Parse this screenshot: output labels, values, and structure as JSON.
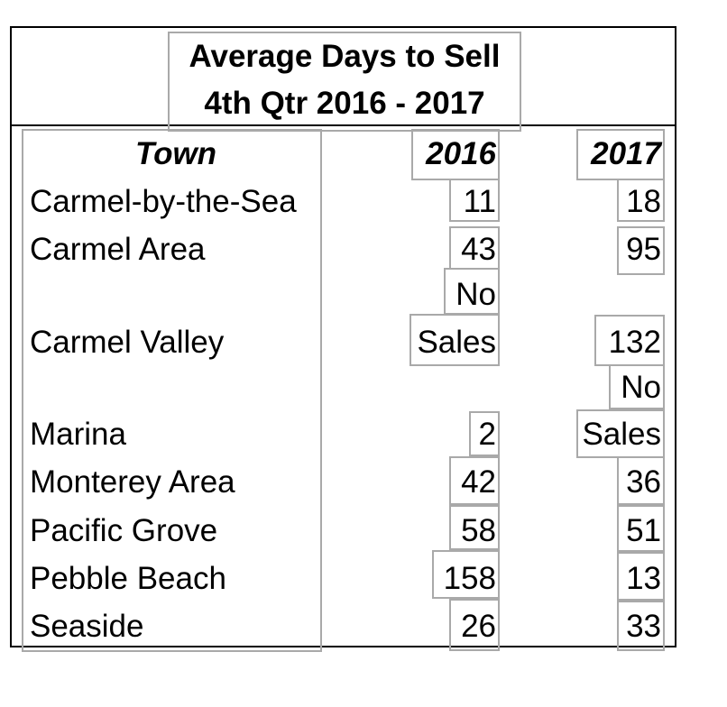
{
  "title": {
    "line1": "Average Days to Sell",
    "line2": "4th Qtr 2016 - 2017"
  },
  "columns": {
    "town": "Town",
    "y2016": "2016",
    "y2017": "2017"
  },
  "rows": [
    {
      "town": "Carmel-by-the-Sea",
      "y2016": "11",
      "y2017": "18"
    },
    {
      "town": "Carmel Area",
      "y2016": "43",
      "y2017": "95"
    },
    {
      "town": "Carmel Valley",
      "y2016": "No Sales",
      "y2017": "132"
    },
    {
      "town": "Marina",
      "y2016": "2",
      "y2017": "No Sales"
    },
    {
      "town": "Monterey Area",
      "y2016": "42",
      "y2017": "36"
    },
    {
      "town": "Pacific Grove",
      "y2016": "58",
      "y2017": "51"
    },
    {
      "town": "Pebble Beach",
      "y2016": "158",
      "y2017": "13"
    },
    {
      "town": "Seaside",
      "y2016": "26",
      "y2017": "33"
    }
  ],
  "no_sales_words": [
    "No",
    "Sales"
  ]
}
